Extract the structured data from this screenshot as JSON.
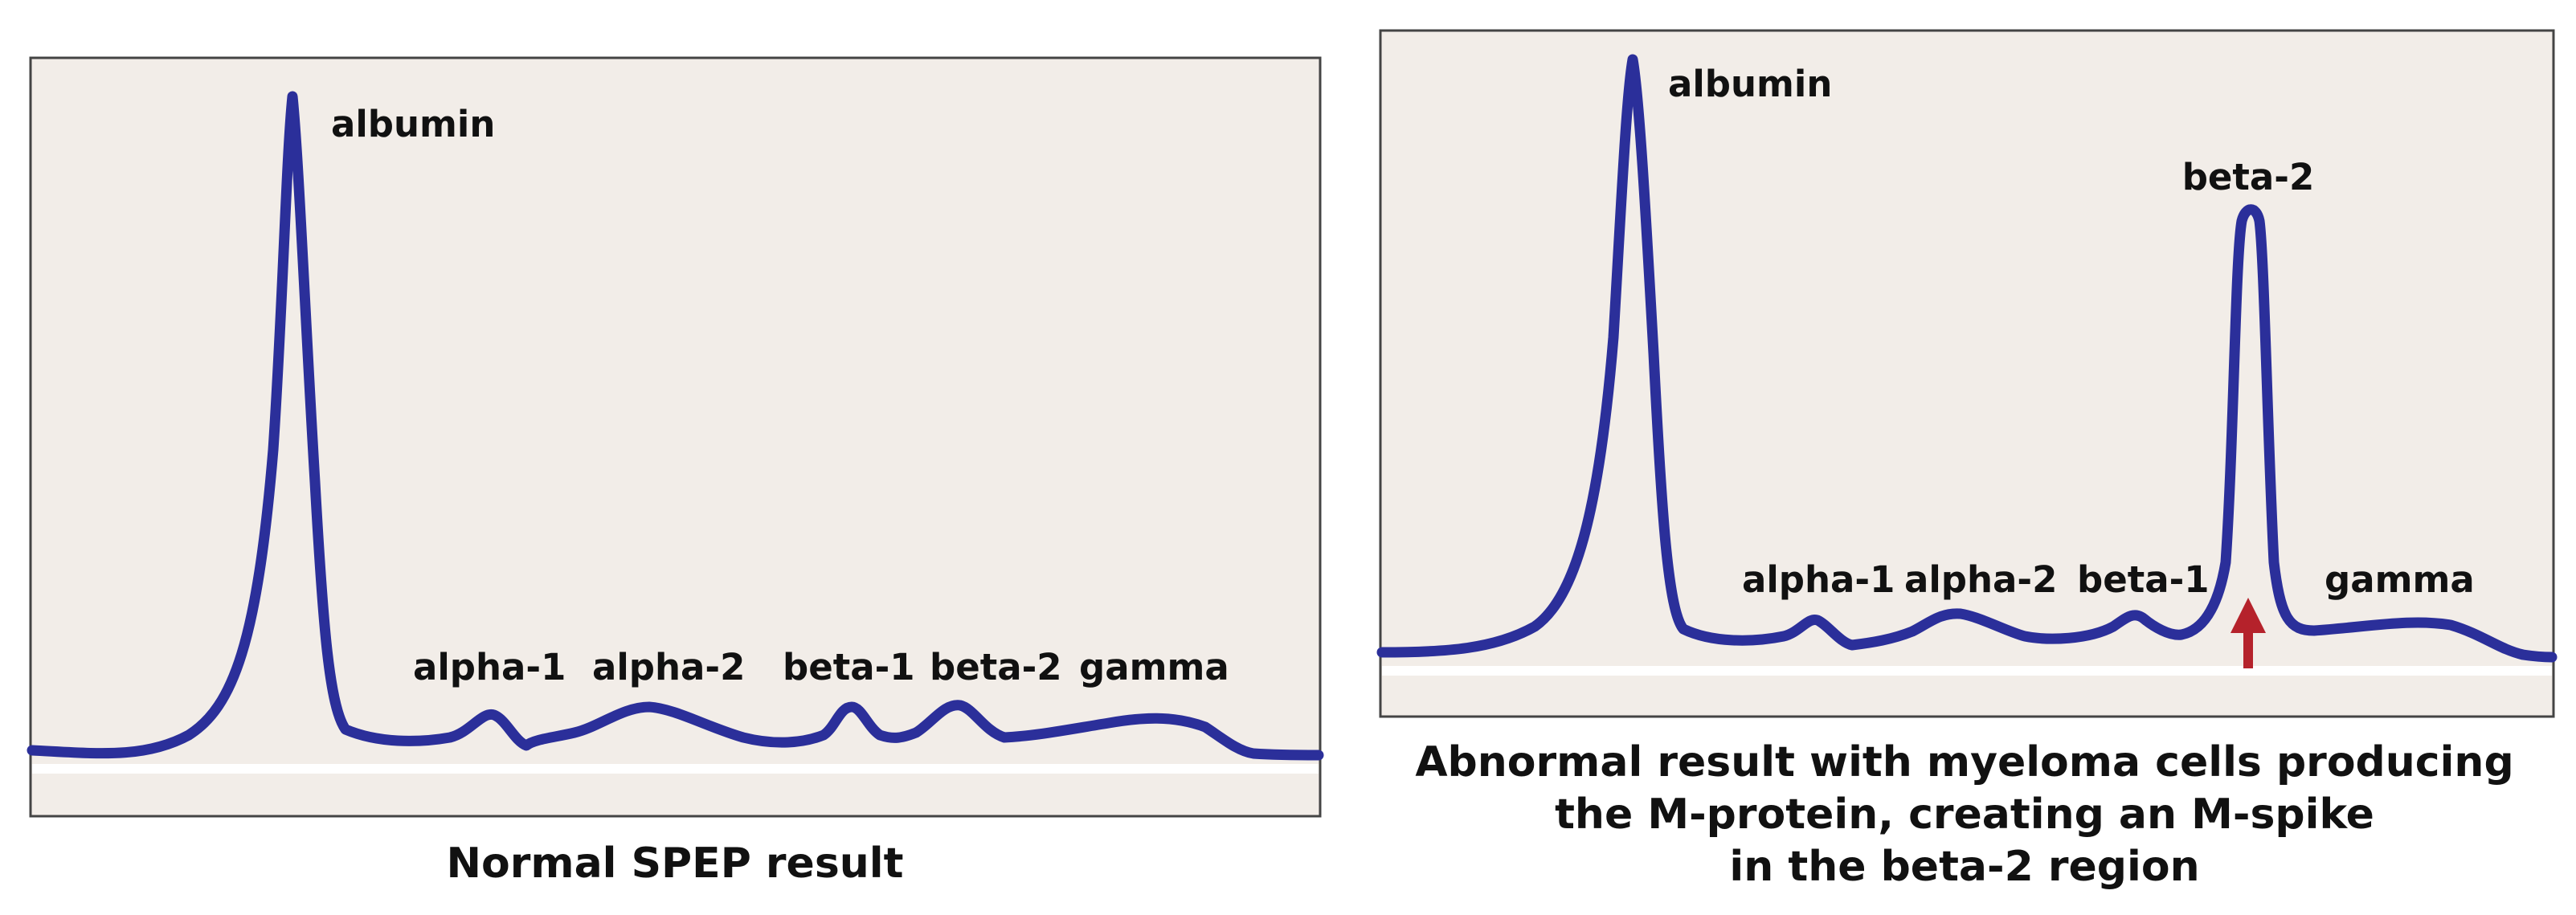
{
  "colors": {
    "panel_bg": "#f2ede8",
    "panel_border": "#444444",
    "trace": "#2b2f9a",
    "baseline": "#ffffff",
    "arrow": "#b5222b",
    "text": "#111111"
  },
  "icons": {
    "arrow": "up-arrow-icon"
  },
  "normal": {
    "caption": "Normal SPEP result",
    "peaks": {
      "albumin": "albumin",
      "alpha1": "alpha-1",
      "alpha2": "alpha-2",
      "beta1": "beta-1",
      "beta2": "beta-2",
      "gamma": "gamma"
    }
  },
  "abnormal": {
    "caption_lines": [
      "Abnormal result with myeloma cells producing",
      "the M-protein, creating an M-spike",
      "in the beta-2 region"
    ],
    "peaks": {
      "albumin": "albumin",
      "alpha1": "alpha-1",
      "alpha2": "alpha-2",
      "beta1": "beta-1",
      "beta2": "beta-2",
      "gamma": "gamma"
    }
  }
}
